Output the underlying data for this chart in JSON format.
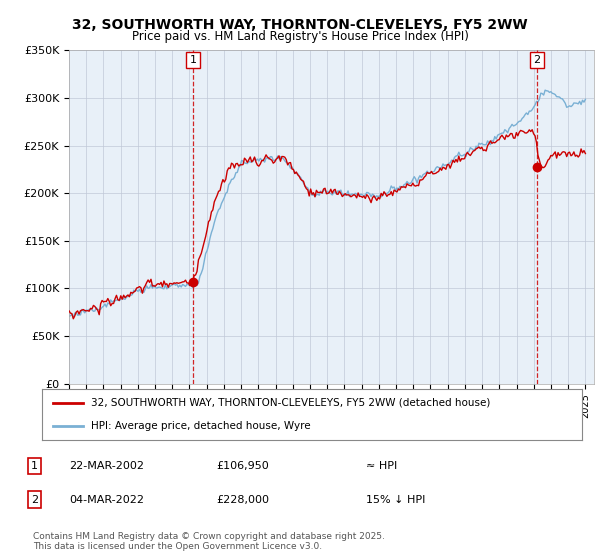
{
  "title": "32, SOUTHWORTH WAY, THORNTON-CLEVELEYS, FY5 2WW",
  "subtitle": "Price paid vs. HM Land Registry's House Price Index (HPI)",
  "ylabel_ticks": [
    "£0",
    "£50K",
    "£100K",
    "£150K",
    "£200K",
    "£250K",
    "£300K",
    "£350K"
  ],
  "ylim": [
    0,
    350000
  ],
  "xlim_year": [
    1995,
    2025.5
  ],
  "line1_color": "#cc0000",
  "line2_color": "#7ab0d4",
  "plot_bg_color": "#e8f0f8",
  "marker1_year": 2002.22,
  "marker1_price": 106950,
  "marker1_label": "1",
  "marker2_year": 2022.17,
  "marker2_price": 228000,
  "marker2_label": "2",
  "legend_line1": "32, SOUTHWORTH WAY, THORNTON-CLEVELEYS, FY5 2WW (detached house)",
  "legend_line2": "HPI: Average price, detached house, Wyre",
  "table_row1_num": "1",
  "table_row1_date": "22-MAR-2002",
  "table_row1_price": "£106,950",
  "table_row1_hpi": "≈ HPI",
  "table_row2_num": "2",
  "table_row2_date": "04-MAR-2022",
  "table_row2_price": "£228,000",
  "table_row2_hpi": "15% ↓ HPI",
  "footer": "Contains HM Land Registry data © Crown copyright and database right 2025.\nThis data is licensed under the Open Government Licence v3.0.",
  "background_color": "#ffffff",
  "grid_color": "#c0c8d8"
}
